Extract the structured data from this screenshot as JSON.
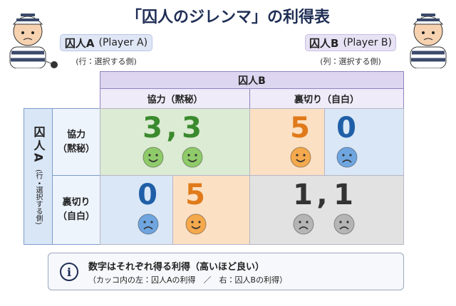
{
  "header": {
    "title": "「囚人のジレンマ」の利得表"
  },
  "player_a": {
    "label": "囚人A",
    "sub": "(Player A)",
    "note": "(行：選択する側)"
  },
  "player_b": {
    "label": "囚人B",
    "sub": "(Player B)",
    "note": "(列：選択する側)"
  },
  "matrix": {
    "column_header": "囚人B",
    "columns": [
      "協力（黙秘）",
      "裏切り（自白）"
    ],
    "row_header": "囚人A",
    "row_header_note": "(行・選択する側)",
    "rows": [
      [
        "協力",
        "（黙秘）"
      ],
      [
        "裏切り",
        "（自白）"
      ]
    ],
    "cells": [
      [
        {
          "a": 3,
          "b": 3,
          "separator": ","
        },
        {
          "a": 5,
          "b": 0
        }
      ],
      [
        {
          "a": 0,
          "b": 5
        },
        {
          "a": 1,
          "b": 1,
          "separator": ","
        }
      ]
    ]
  },
  "footer": {
    "icon": "i",
    "line1": "数字はそれぞれ得る利得（高いほど良い）",
    "line2": "（カッコ内の左：囚人Aの利得　／　右：囚人Bの利得）"
  }
}
